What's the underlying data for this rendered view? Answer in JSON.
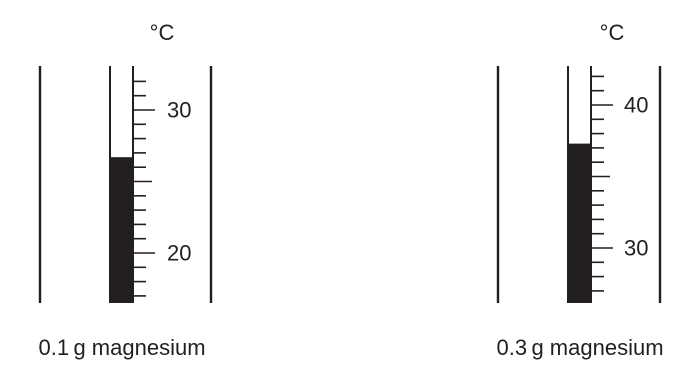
{
  "thermometers": [
    {
      "unit": "°C",
      "label": "0.1 g magnesium",
      "scale": [
        {
          "value": 30,
          "text": "30"
        },
        {
          "value": 20,
          "text": "20"
        }
      ],
      "range": [
        16,
        32.5
      ],
      "reading": 26.7
    },
    {
      "unit": "°C",
      "label": "0.3 g magnesium",
      "scale": [
        {
          "value": 40,
          "text": "40"
        },
        {
          "value": 30,
          "text": "30"
        }
      ],
      "range": [
        26,
        42.5
      ],
      "reading": 37.3
    }
  ],
  "colors": {
    "ink": "#231f20",
    "fill": "#231f20",
    "background": "#ffffff"
  }
}
